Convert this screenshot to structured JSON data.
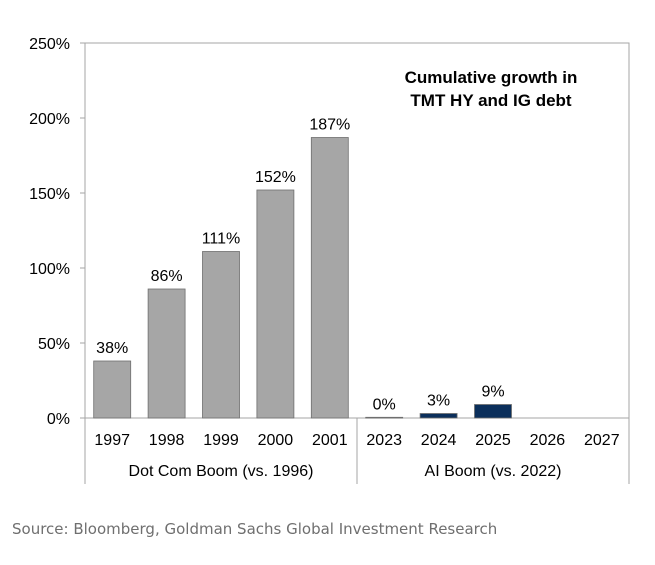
{
  "chart_data": {
    "type": "bar",
    "title": "Cumulative growth in\nTMT HY and IG debt",
    "title_lines": [
      "Cumulative growth in",
      "TMT HY and IG debt"
    ],
    "ylim": [
      0,
      250
    ],
    "yticks": [
      0,
      50,
      100,
      150,
      200,
      250
    ],
    "ytick_labels": [
      "0%",
      "50%",
      "100%",
      "150%",
      "200%",
      "250%"
    ],
    "groups": [
      {
        "name": "Dot Com Boom (vs. 1996)",
        "color": "#a6a6a6",
        "categories": [
          "1997",
          "1998",
          "1999",
          "2000",
          "2001"
        ],
        "values": [
          38,
          86,
          111,
          152,
          187
        ],
        "labels": [
          "38%",
          "86%",
          "111%",
          "152%",
          "187%"
        ]
      },
      {
        "name": "AI Boom (vs. 2022)",
        "color": "#0b2f5b",
        "categories": [
          "2023",
          "2024",
          "2025",
          "2026",
          "2027"
        ],
        "values": [
          0.5,
          3,
          9,
          null,
          null
        ],
        "labels": [
          "0%",
          "3%",
          "9%",
          "",
          ""
        ]
      }
    ]
  },
  "source": "Source: Bloomberg, Goldman Sachs Global Investment Research"
}
